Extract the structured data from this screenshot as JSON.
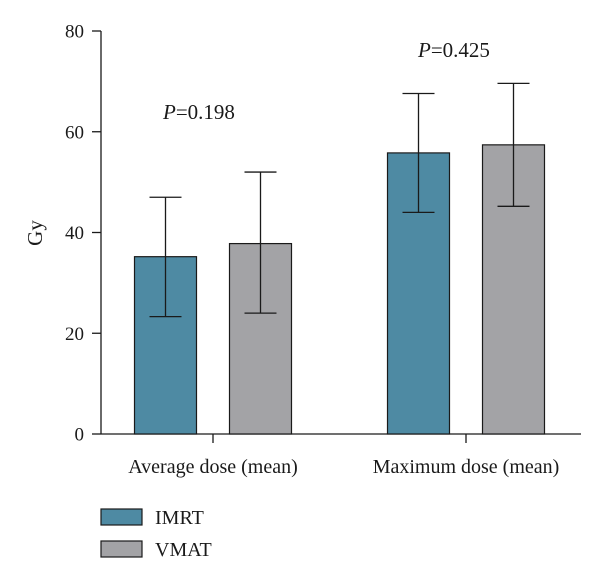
{
  "chart_data": {
    "type": "bar",
    "ylabel": "Gy",
    "xlabel": "",
    "ylim": [
      0,
      80
    ],
    "yticks": [
      0,
      20,
      40,
      60,
      80
    ],
    "categories": [
      "Average dose (mean)",
      "Maximum dose (mean)"
    ],
    "series": [
      {
        "name": "IMRT",
        "color": "#4e8aa3",
        "values": [
          35.2,
          55.8
        ],
        "err_low": [
          23.3,
          44.0
        ],
        "err_high": [
          47.0,
          67.6
        ]
      },
      {
        "name": "VMAT",
        "color": "#a3a3a6",
        "values": [
          37.8,
          57.4
        ],
        "err_low": [
          24.0,
          45.2
        ],
        "err_high": [
          52.0,
          69.6
        ]
      }
    ],
    "annotations": [
      {
        "category": "Average dose (mean)",
        "p_symbol": "P",
        "p_value": "=0.198"
      },
      {
        "category": "Maximum dose (mean)",
        "p_symbol": "P",
        "p_value": "=0.425"
      }
    ],
    "grid": false,
    "legend_position": "bottom-left"
  }
}
